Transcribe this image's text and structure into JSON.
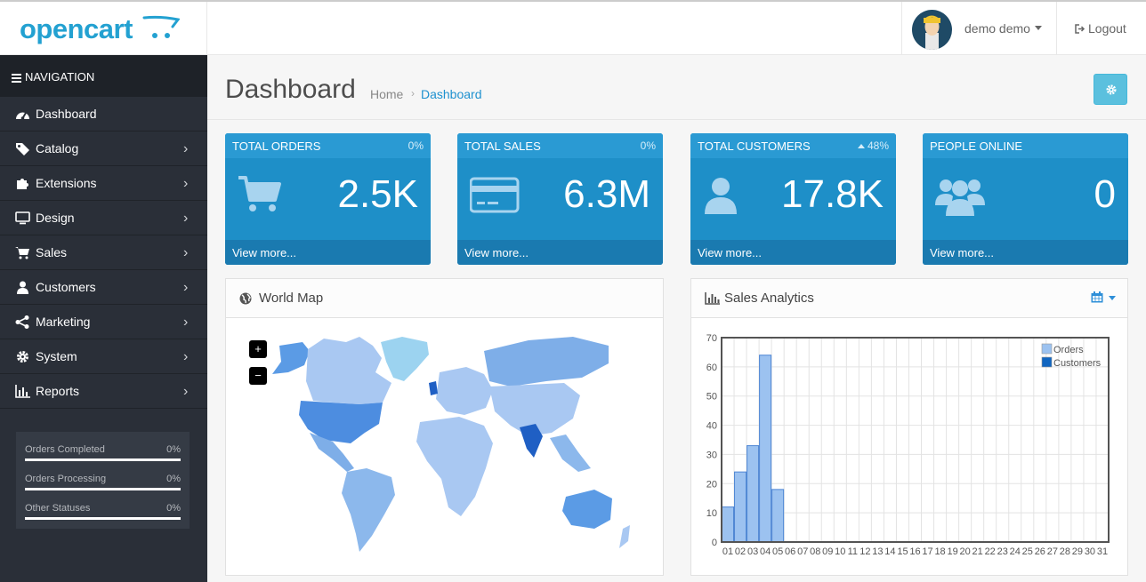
{
  "header": {
    "logo_text": "opencart",
    "user_name": "demo demo",
    "logout_label": "Logout"
  },
  "sidebar": {
    "heading": "NAVIGATION",
    "items": [
      {
        "label": "Dashboard",
        "icon": "dashboard-icon",
        "has_children": false
      },
      {
        "label": "Catalog",
        "icon": "tag-icon",
        "has_children": true
      },
      {
        "label": "Extensions",
        "icon": "puzzle-icon",
        "has_children": true
      },
      {
        "label": "Design",
        "icon": "desktop-icon",
        "has_children": true
      },
      {
        "label": "Sales",
        "icon": "shopping-cart-icon",
        "has_children": true
      },
      {
        "label": "Customers",
        "icon": "user-icon",
        "has_children": true
      },
      {
        "label": "Marketing",
        "icon": "share-icon",
        "has_children": true
      },
      {
        "label": "System",
        "icon": "cog-icon",
        "has_children": true
      },
      {
        "label": "Reports",
        "icon": "bar-chart-icon",
        "has_children": true
      }
    ],
    "statuses": [
      {
        "label": "Orders Completed",
        "value": "0%",
        "progress": 0
      },
      {
        "label": "Orders Processing",
        "value": "0%",
        "progress": 0
      },
      {
        "label": "Other Statuses",
        "value": "0%",
        "progress": 0
      }
    ]
  },
  "page": {
    "title": "Dashboard",
    "breadcrumb": [
      "Home",
      "Dashboard"
    ]
  },
  "tiles": [
    {
      "title": "TOTAL ORDERS",
      "percent": "0%",
      "value": "2.5K",
      "more": "View more...",
      "icon": "shopping-cart-icon"
    },
    {
      "title": "TOTAL SALES",
      "percent": "0%",
      "value": "6.3M",
      "more": "View more...",
      "icon": "credit-card-icon"
    },
    {
      "title": "TOTAL CUSTOMERS",
      "percent": "48%",
      "value": "17.8K",
      "more": "View more...",
      "icon": "user-icon",
      "trend": "up"
    },
    {
      "title": "PEOPLE ONLINE",
      "percent": "",
      "value": "0",
      "more": "View more...",
      "icon": "users-icon"
    }
  ],
  "map_panel": {
    "title": "World Map",
    "zoom_in": "+",
    "zoom_out": "−"
  },
  "sales_panel": {
    "title": "Sales Analytics"
  },
  "colors": {
    "brand": "#23a1d1",
    "sidebar": "#2a2f38",
    "tile": "#1e8fc8",
    "orders_series": "#9cc2f0",
    "customers_series": "#1065c0"
  },
  "chart_data": {
    "type": "bar",
    "categories": [
      "01",
      "02",
      "03",
      "04",
      "05",
      "06",
      "07",
      "08",
      "09",
      "10",
      "11",
      "12",
      "13",
      "14",
      "15",
      "16",
      "17",
      "18",
      "19",
      "20",
      "21",
      "22",
      "23",
      "24",
      "25",
      "26",
      "27",
      "28",
      "29",
      "30",
      "31"
    ],
    "series": [
      {
        "name": "Orders",
        "values": [
          12,
          24,
          33,
          64,
          18,
          0,
          0,
          0,
          0,
          0,
          0,
          0,
          0,
          0,
          0,
          0,
          0,
          0,
          0,
          0,
          0,
          0,
          0,
          0,
          0,
          0,
          0,
          0,
          0,
          0,
          0
        ]
      },
      {
        "name": "Customers",
        "values": [
          0,
          0,
          0,
          0,
          0,
          0,
          0,
          0,
          0,
          0,
          0,
          0,
          0,
          0,
          0,
          0,
          0,
          0,
          0,
          0,
          0,
          0,
          0,
          0,
          0,
          0,
          0,
          0,
          0,
          0,
          0
        ]
      }
    ],
    "yticks": [
      0,
      10,
      20,
      30,
      40,
      50,
      60,
      70
    ],
    "ylim": [
      0,
      70
    ],
    "grid": true,
    "legend": "top-right"
  }
}
